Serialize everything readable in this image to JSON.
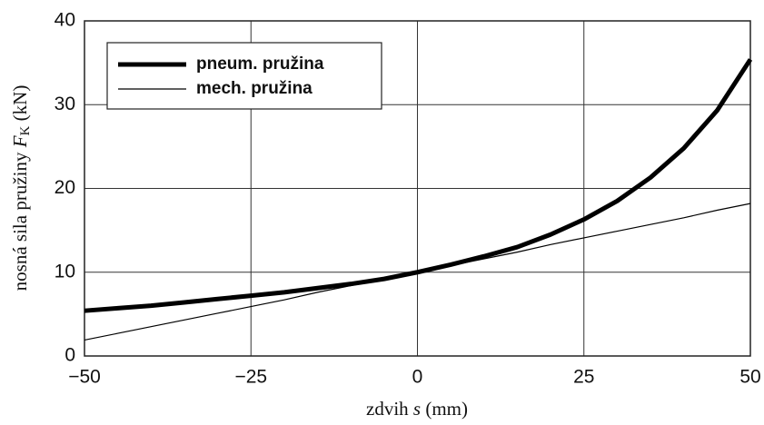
{
  "chart_data": {
    "type": "line",
    "x_label": {
      "text": "zdvih ",
      "symbol": "s",
      "unit": " (mm)"
    },
    "y_label": {
      "text": "nosná sila pružiny ",
      "symbol": "F",
      "subscript": "K",
      "unit": " (kN)"
    },
    "x": [
      -50,
      -45,
      -40,
      -35,
      -30,
      -25,
      -20,
      -15,
      -10,
      -5,
      0,
      5,
      10,
      15,
      20,
      25,
      30,
      35,
      40,
      45,
      50
    ],
    "series": [
      {
        "name": "pneum. pružina",
        "color": "#000000",
        "width": 5,
        "values": [
          5.4,
          5.7,
          6.0,
          6.4,
          6.8,
          7.2,
          7.6,
          8.1,
          8.6,
          9.2,
          10.0,
          10.9,
          11.9,
          13.0,
          14.5,
          16.3,
          18.5,
          21.3,
          24.8,
          29.3,
          35.4
        ]
      },
      {
        "name": "mech. pružina",
        "color": "#000000",
        "width": 1.2,
        "values": [
          1.9,
          2.7,
          3.5,
          4.3,
          5.1,
          5.9,
          6.7,
          7.6,
          8.4,
          9.2,
          10.0,
          10.8,
          11.6,
          12.4,
          13.3,
          14.1,
          14.9,
          15.7,
          16.5,
          17.4,
          18.2
        ]
      }
    ],
    "xlim": [
      -50,
      50
    ],
    "xticks": [
      {
        "value": -50,
        "label": "−50"
      },
      {
        "value": -25,
        "label": "−25"
      },
      0,
      25,
      50
    ],
    "ylim": [
      0,
      40
    ],
    "yticks": [
      0,
      10,
      20,
      30,
      40
    ],
    "grid": true,
    "legend": "upper-left"
  }
}
